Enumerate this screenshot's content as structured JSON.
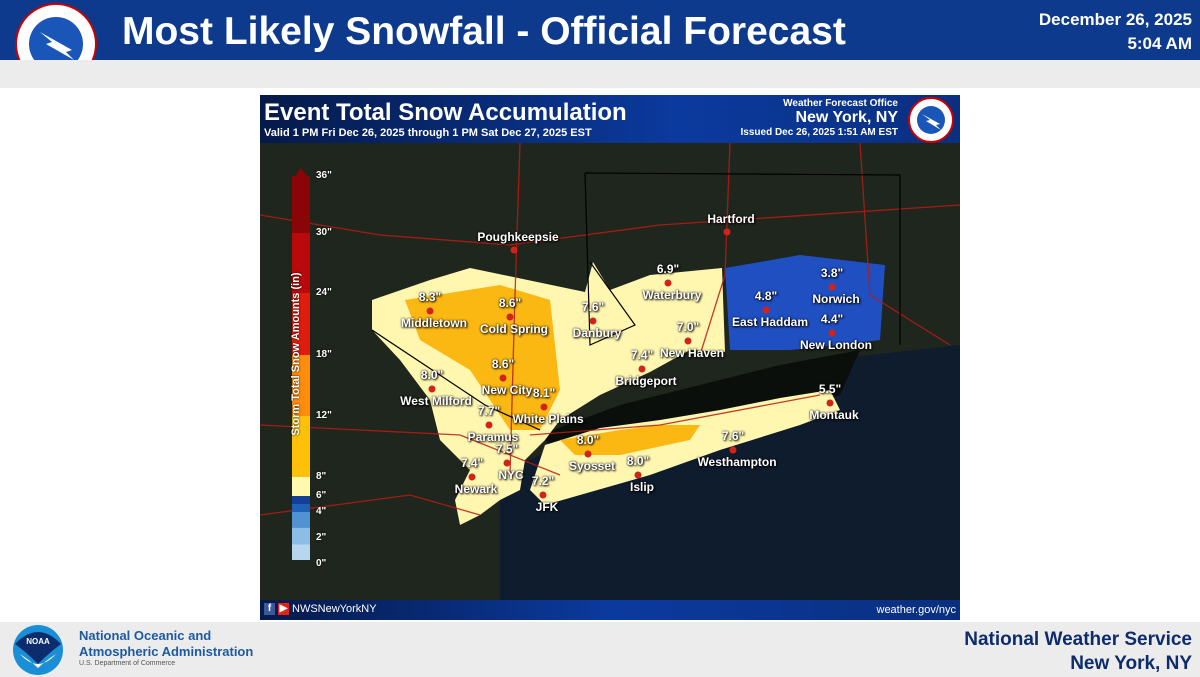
{
  "header": {
    "title": "Most Likely Snowfall - Official Forecast",
    "date": "December 26, 2025",
    "time": "5:04 AM"
  },
  "map": {
    "title": "Event Total Snow Accumulation",
    "valid": "Valid 1 PM Fri Dec 26, 2025 through 1 PM Sat Dec 27, 2025 EST",
    "office_label": "Weather Forecast Office",
    "office": "New York, NY",
    "issued": "Issued Dec 26, 2025 1:51 AM EST",
    "social_handle": "NWSNewYorkNY",
    "website": "weather.gov/nyc",
    "legend": {
      "title": "Storm Total Snow Amounts (in)",
      "ticks": [
        "36\"",
        "30\"",
        "24\"",
        "18\"",
        "12\"",
        "8\"",
        "6\"",
        "4\"",
        "2\"",
        "0\""
      ],
      "colors": [
        "#b8d6ee",
        "#8bbde6",
        "#4f93d3",
        "#1f62b5",
        "#123f97",
        "#fff8b0",
        "#ffc107",
        "#ff8c0a",
        "#e01c0c",
        "#b80a0a",
        "#8a0505"
      ]
    },
    "places": [
      {
        "name": "Poughkeepsie",
        "value": ""
      },
      {
        "name": "Hartford",
        "value": ""
      },
      {
        "name": "Middletown",
        "value": "8.3\""
      },
      {
        "name": "Cold Spring",
        "value": "8.6\""
      },
      {
        "name": "Danbury",
        "value": "7.6\""
      },
      {
        "name": "Waterbury",
        "value": "6.9\""
      },
      {
        "name": "New Haven",
        "value": "7.0\""
      },
      {
        "name": "Bridgeport",
        "value": "7.4\""
      },
      {
        "name": "New City",
        "value": "8.6\""
      },
      {
        "name": "White Plains",
        "value": "8.1\""
      },
      {
        "name": "West Milford",
        "value": "8.0\""
      },
      {
        "name": "Paramus",
        "value": "7.7\""
      },
      {
        "name": "NYC",
        "value": "7.5\""
      },
      {
        "name": "Newark",
        "value": "7.4\""
      },
      {
        "name": "JFK",
        "value": "7.2\""
      },
      {
        "name": "Syosset",
        "value": "8.0\""
      },
      {
        "name": "Islip",
        "value": "8.0\""
      },
      {
        "name": "Westhampton",
        "value": "7.6\""
      },
      {
        "name": "East Haddam",
        "value": "4.8\""
      },
      {
        "name": "Norwich",
        "value": "3.8\""
      },
      {
        "name": "New London",
        "value": "4.4\""
      },
      {
        "name": "Montauk",
        "value": "5.5\""
      }
    ]
  },
  "footer": {
    "noaa_line1": "National Oceanic and",
    "noaa_line2": "Atmospheric Administration",
    "noaa_dept": "U.S. Department of Commerce",
    "nws_line1": "National Weather Service",
    "nws_line2": "New York, NY",
    "noaa_logo_text": "NOAA",
    "nws_logo_text": "NATIONAL WEATHER SERVICE"
  }
}
